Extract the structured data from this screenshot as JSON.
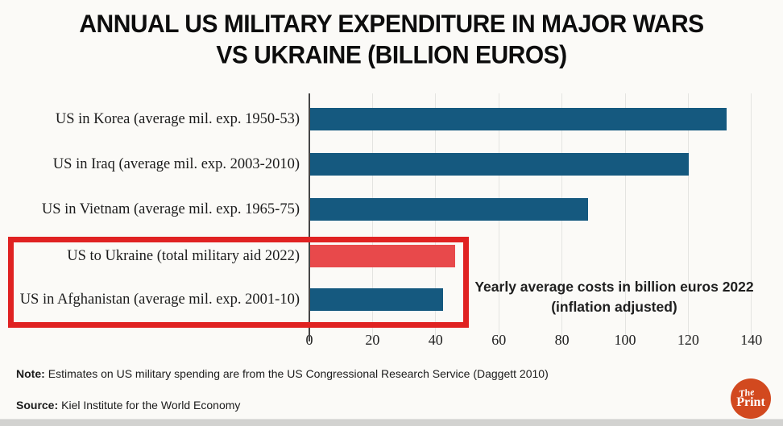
{
  "chart_data": {
    "type": "bar",
    "orientation": "horizontal",
    "title": "ANNUAL US MILITARY EXPENDITURE IN MAJOR WARS\nVS UKRAINE (BILLION EUROS)",
    "categories": [
      "US in Korea (average mil. exp. 1950-53)",
      "US in Iraq (average mil. exp. 2003-2010)",
      "US in Vietnam (average mil. exp. 1965-75)",
      "US to Ukraine (total military aid 2022)",
      "US in Afghanistan (average mil. exp. 2001-10)"
    ],
    "values": [
      132,
      120,
      88,
      46,
      42
    ],
    "units": "billion euros",
    "bar_colors": [
      "#15597F",
      "#15597F",
      "#15597F",
      "#E8494B",
      "#15597F"
    ],
    "x_ticks": [
      0,
      20,
      40,
      60,
      80,
      100,
      120,
      140
    ],
    "xlim": [
      0,
      143
    ],
    "grid": true,
    "legend": false,
    "annotation": "Yearly average costs in billion euros 2022\n(inflation adjusted)",
    "highlighted_categories": [
      "US to Ukraine (total military aid 2022)",
      "US in Afghanistan (average mil. exp. 2001-10)"
    ],
    "highlight_box_color": "#E02222"
  },
  "footer": {
    "note_label": "Note:",
    "note_text": "Estimates on US military spending are from the US Congressional Research Service (Daggett 2010)",
    "source_label": "Source:",
    "source_text": "Kiel Institute for the World Economy"
  },
  "logo": {
    "text_top": "The",
    "text_bottom": "Print",
    "background": "#D2491F"
  }
}
